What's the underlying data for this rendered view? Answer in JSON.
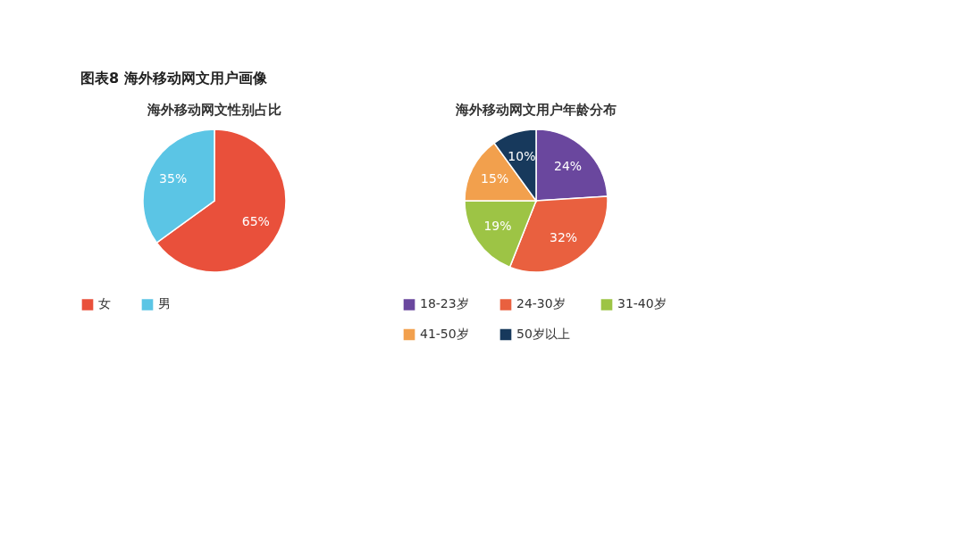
{
  "chart_data": [
    {
      "type": "pie",
      "title": "海外移动网文性别占比",
      "annotations": [
        "图表8 海外移动网文用户画像"
      ],
      "categories": [
        "女",
        "男"
      ],
      "values": [
        65,
        35
      ],
      "value_labels": [
        "65%",
        "35%"
      ],
      "colors": [
        "#e9503b",
        "#5bc5e5"
      ],
      "legend": "bottom"
    },
    {
      "type": "pie",
      "title": "海外移动网文用户年龄分布",
      "categories": [
        "18-23岁",
        "24-30岁",
        "31-40岁",
        "41-50岁",
        "50岁以上"
      ],
      "values": [
        24,
        32,
        19,
        15,
        10
      ],
      "value_labels": [
        "24%",
        "32%",
        "19%",
        "15%",
        "10%"
      ],
      "colors": [
        "#6a479e",
        "#e9603f",
        "#9dc445",
        "#f2a04d",
        "#17395c"
      ],
      "legend": "bottom"
    }
  ]
}
